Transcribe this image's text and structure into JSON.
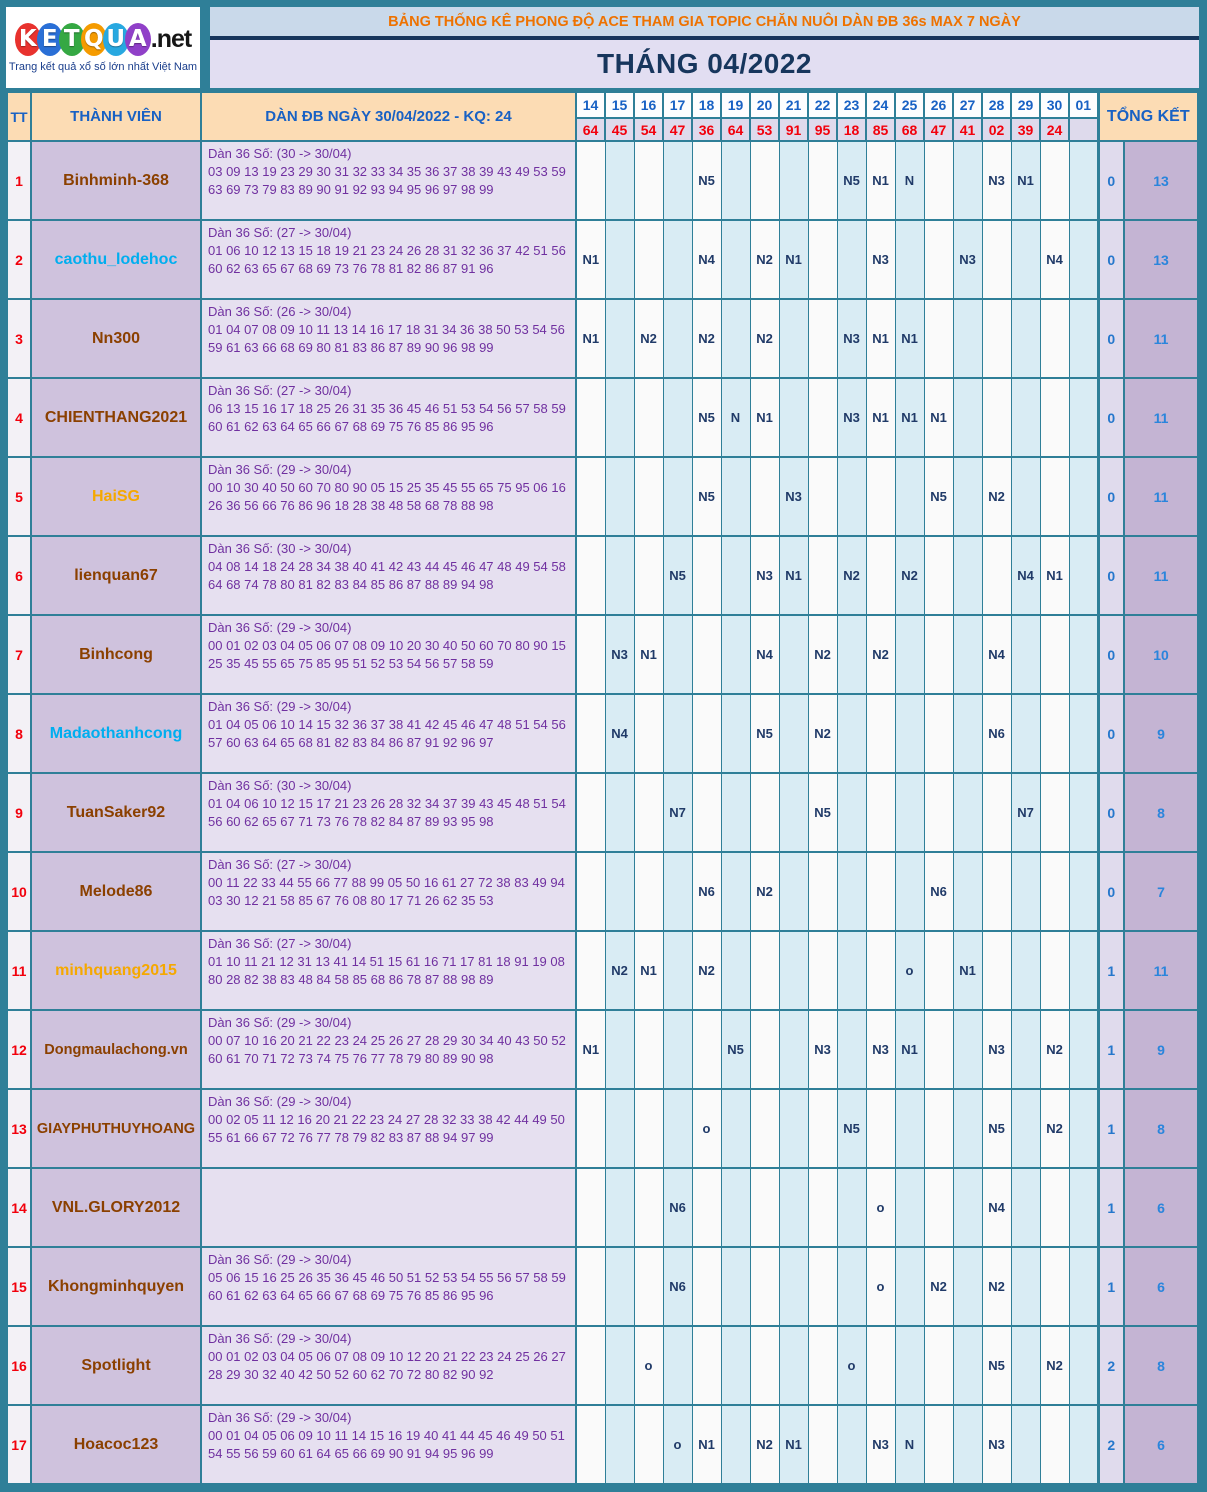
{
  "logo": {
    "letters": [
      {
        "ch": "K",
        "color": "#e8322e"
      },
      {
        "ch": "E",
        "color": "#2a6fd6"
      },
      {
        "ch": "T",
        "color": "#35a843"
      },
      {
        "ch": "Q",
        "color": "#f59b00"
      },
      {
        "ch": "U",
        "color": "#28a8e0"
      },
      {
        "ch": "A",
        "color": "#9040c8"
      }
    ],
    "suffix": ".net",
    "tagline": "Trang kết quả xổ số lớn nhất Việt Nam"
  },
  "header": {
    "banner": "BẢNG THỐNG KÊ PHONG ĐỘ ACE THAM GIA TOPIC CHĂN NUÔI DÀN ĐB 36s MAX 7 NGÀY",
    "month_title": "THÁNG 04/2022"
  },
  "colors": {
    "page_teal": "#2f7f98",
    "header_peach": "#fcdcb4",
    "banner_blue": "#c9d9ea",
    "banner_text_orange": "#ee7200",
    "navy": "#17365d",
    "header_text_blue": "#1861c4",
    "kq_red": "#f2000c",
    "mark_navy": "#203a68",
    "dan_purple": "#7030a0",
    "member_bg": "#cfc2dd",
    "date_alt_blue": "#d9ecf4",
    "total_bg": "#c4b4d3",
    "name_brown": "#8b4000",
    "name_blue": "#00aeef",
    "name_orange": "#f5a800"
  },
  "table": {
    "col_tt": "TT",
    "col_member": "THÀNH VIÊN",
    "col_dan": "DÀN ĐB NGÀY 30/04/2022 - KQ: 24",
    "col_tongket": "TỔNG KẾT",
    "dates": [
      "14",
      "15",
      "16",
      "17",
      "18",
      "19",
      "20",
      "21",
      "22",
      "23",
      "24",
      "25",
      "26",
      "27",
      "28",
      "29",
      "30",
      "01"
    ],
    "kq": [
      "64",
      "45",
      "54",
      "47",
      "36",
      "64",
      "53",
      "91",
      "95",
      "18",
      "85",
      "68",
      "47",
      "41",
      "02",
      "39",
      "24",
      ""
    ],
    "rows": [
      {
        "tt": "1",
        "name": "Binhminh-368",
        "name_color": "#8b4000",
        "dan_title": "Dàn 36 Số: (30 -> 30/04)",
        "dan_numbers": "03 09 13 19 23 29 30 31 32 33 34 35 36 37 38 39 43 49 53 59 63 69 73 79 83 89 90 91 92 93 94 95 96 97 98 99",
        "cells": [
          "",
          "",
          "",
          "",
          "N5",
          "",
          "",
          "",
          "",
          "N5",
          "N1",
          "N",
          "",
          "",
          "N3",
          "N1",
          "",
          ""
        ],
        "tk1": "0",
        "tk2": "13"
      },
      {
        "tt": "2",
        "name": "caothu_lodehoc",
        "name_color": "#00aeef",
        "dan_title": "Dàn 36 Số: (27 -> 30/04)",
        "dan_numbers": "01 06 10 12 13 15 18 19 21 23 24 26 28 31 32 36 37 42 51 56 60 62 63 65 67 68 69 73 76 78 81 82 86 87 91 96",
        "cells": [
          "N1",
          "",
          "",
          "",
          "N4",
          "",
          "N2",
          "N1",
          "",
          "",
          "N3",
          "",
          "",
          "N3",
          "",
          "",
          "N4",
          ""
        ],
        "tk1": "0",
        "tk2": "13"
      },
      {
        "tt": "3",
        "name": "Nn300",
        "name_color": "#8b4000",
        "dan_title": "Dàn 36 Số: (26 -> 30/04)",
        "dan_numbers": "01 04 07 08 09 10 11 13 14 16 17 18 31 34 36 38 50 53 54 56 59 61 63 66 68 69 80 81 83 86 87 89 90 96 98 99",
        "cells": [
          "N1",
          "",
          "N2",
          "",
          "N2",
          "",
          "N2",
          "",
          "",
          "N3",
          "N1",
          "N1",
          "",
          "",
          "",
          "",
          "",
          ""
        ],
        "tk1": "0",
        "tk2": "11"
      },
      {
        "tt": "4",
        "name": "CHIENTHANG2021",
        "name_color": "#8b4000",
        "dan_title": "Dàn 36 Số: (27 -> 30/04)",
        "dan_numbers": "06 13 15 16 17 18 25 26 31 35 36 45 46 51 53 54 56 57 58 59 60 61 62 63 64 65 66 67 68 69 75 76 85 86 95 96",
        "cells": [
          "",
          "",
          "",
          "",
          "N5",
          "N",
          "N1",
          "",
          "",
          "N3",
          "N1",
          "N1",
          "N1",
          "",
          "",
          "",
          "",
          ""
        ],
        "tk1": "0",
        "tk2": "11"
      },
      {
        "tt": "5",
        "name": "HaiSG",
        "name_color": "#f5a800",
        "dan_title": "Dàn 36 Số: (29 -> 30/04)",
        "dan_numbers": "00 10 30 40 50 60 70 80 90 05 15 25 35 45 55 65 75 95 06 16 26 36 56 66 76 86 96 18 28 38 48 58 68 78 88 98",
        "cells": [
          "",
          "",
          "",
          "",
          "N5",
          "",
          "",
          "N3",
          "",
          "",
          "",
          "",
          "N5",
          "",
          "N2",
          "",
          "",
          ""
        ],
        "tk1": "0",
        "tk2": "11"
      },
      {
        "tt": "6",
        "name": "lienquan67",
        "name_color": "#8b4000",
        "dan_title": "Dàn 36 Số: (30 -> 30/04)",
        "dan_numbers": "04 08 14 18 24 28 34 38 40 41 42 43 44 45 46 47 48 49 54 58 64 68 74 78 80 81 82 83 84 85 86 87 88 89 94 98",
        "cells": [
          "",
          "",
          "",
          "N5",
          "",
          "",
          "N3",
          "N1",
          "",
          "N2",
          "",
          "N2",
          "",
          "",
          "",
          "N4",
          "N1",
          ""
        ],
        "tk1": "0",
        "tk2": "11"
      },
      {
        "tt": "7",
        "name": "Binhcong",
        "name_color": "#8b4000",
        "dan_title": "Dàn 36 Số: (29 -> 30/04)",
        "dan_numbers": "00 01 02 03 04 05 06 07 08 09 10 20 30 40 50 60 70 80 90 15 25 35 45 55 65 75 85 95 51 52 53 54 56 57 58 59",
        "cells": [
          "",
          "N3",
          "N1",
          "",
          "",
          "",
          "N4",
          "",
          "N2",
          "",
          "N2",
          "",
          "",
          "",
          "N4",
          "",
          "",
          ""
        ],
        "tk1": "0",
        "tk2": "10"
      },
      {
        "tt": "8",
        "name": "Madaothanhcong",
        "name_color": "#00aeef",
        "dan_title": "Dàn 36 Số: (29 -> 30/04)",
        "dan_numbers": "01 04 05 06 10 14 15 32 36 37 38 41 42 45 46 47 48 51 54 56 57 60 63 64 65 68 81 82 83 84 86 87 91 92 96 97",
        "cells": [
          "",
          "N4",
          "",
          "",
          "",
          "",
          "N5",
          "",
          "N2",
          "",
          "",
          "",
          "",
          "",
          "N6",
          "",
          "",
          ""
        ],
        "tk1": "0",
        "tk2": "9"
      },
      {
        "tt": "9",
        "name": "TuanSaker92",
        "name_color": "#8b4000",
        "dan_title": "Dàn 36 Số: (30 -> 30/04)",
        "dan_numbers": "01 04 06 10 12 15 17 21 23 26 28 32 34 37 39 43 45 48 51 54 56 60 62 65 67 71 73 76 78 82 84 87 89 93 95 98",
        "cells": [
          "",
          "",
          "",
          "N7",
          "",
          "",
          "",
          "",
          "N5",
          "",
          "",
          "",
          "",
          "",
          "",
          "N7",
          "",
          ""
        ],
        "tk1": "0",
        "tk2": "8"
      },
      {
        "tt": "10",
        "name": "Melode86",
        "name_color": "#8b4000",
        "dan_title": "Dàn 36 Số: (27 -> 30/04)",
        "dan_numbers": "00 11 22 33 44 55 66 77 88 99 05 50 16 61 27 72 38 83 49 94 03 30 12 21 58 85 67 76 08 80 17 71 26 62 35 53",
        "cells": [
          "",
          "",
          "",
          "",
          "N6",
          "",
          "N2",
          "",
          "",
          "",
          "",
          "",
          "N6",
          "",
          "",
          "",
          "",
          ""
        ],
        "tk1": "0",
        "tk2": "7"
      },
      {
        "tt": "11",
        "name": "minhquang2015",
        "name_color": "#f5a800",
        "dan_title": "Dàn 36 Số: (27 -> 30/04)",
        "dan_numbers": "01 10 11 21 12 31 13 41 14 51 15 61 16 71 17 81 18 91 19 08 80 28 82 38 83 48 84 58 85 68 86 78 87 88 98 89",
        "cells": [
          "",
          "N2",
          "N1",
          "",
          "N2",
          "",
          "",
          "",
          "",
          "",
          "",
          "o",
          "",
          "N1",
          "",
          "",
          "",
          ""
        ],
        "tk1": "1",
        "tk2": "11"
      },
      {
        "tt": "12",
        "name": "Dongmaulachong.vn",
        "name_color": "#8b4000",
        "dan_title": "Dàn 36 Số: (29 -> 30/04)",
        "dan_numbers": "00 07 10 16 20 21 22 23 24 25 26 27 28 29 30 34 40 43 50 52 60 61 70 71 72 73 74 75 76 77 78 79 80 89 90 98",
        "cells": [
          "N1",
          "",
          "",
          "",
          "",
          "N5",
          "",
          "",
          "N3",
          "",
          "N3",
          "N1",
          "",
          "",
          "N3",
          "",
          "N2",
          ""
        ],
        "tk1": "1",
        "tk2": "9"
      },
      {
        "tt": "13",
        "name": "GIAYPHUTHUYHOANG",
        "name_color": "#8b4000",
        "dan_title": "Dàn 36 Số: (29 -> 30/04)",
        "dan_numbers": "00 02 05 11 12 16 20 21 22 23 24 27 28 32 33 38 42 44 49 50 55 61 66 67 72 76 77 78 79 82 83 87 88 94 97 99",
        "cells": [
          "",
          "",
          "",
          "",
          "o",
          "",
          "",
          "",
          "",
          "N5",
          "",
          "",
          "",
          "",
          "N5",
          "",
          "N2",
          ""
        ],
        "tk1": "1",
        "tk2": "8"
      },
      {
        "tt": "14",
        "name": "VNL.GLORY2012",
        "name_color": "#8b4000",
        "dan_title": "",
        "dan_numbers": "",
        "cells": [
          "",
          "",
          "",
          "N6",
          "",
          "",
          "",
          "",
          "",
          "",
          "o",
          "",
          "",
          "",
          "N4",
          "",
          "",
          ""
        ],
        "tk1": "1",
        "tk2": "6"
      },
      {
        "tt": "15",
        "name": "Khongminhquyen",
        "name_color": "#8b4000",
        "dan_title": "Dàn 36 Số: (29 -> 30/04)",
        "dan_numbers": "05 06 15 16 25 26 35 36 45 46 50 51 52 53 54 55 56 57 58 59 60 61 62 63 64 65 66 67 68 69 75 76 85 86 95 96",
        "cells": [
          "",
          "",
          "",
          "N6",
          "",
          "",
          "",
          "",
          "",
          "",
          "o",
          "",
          "N2",
          "",
          "N2",
          "",
          "",
          ""
        ],
        "tk1": "1",
        "tk2": "6"
      },
      {
        "tt": "16",
        "name": "Spotlight",
        "name_color": "#8b4000",
        "dan_title": "Dàn 36 Số: (29 -> 30/04)",
        "dan_numbers": "00 01 02 03 04 05 06 07 08 09 10 12 20 21 22 23 24 25 26 27 28 29 30 32 40 42 50 52 60 62 70 72 80 82 90 92",
        "cells": [
          "",
          "",
          "o",
          "",
          "",
          "",
          "",
          "",
          "",
          "o",
          "",
          "",
          "",
          "",
          "N5",
          "",
          "N2",
          ""
        ],
        "tk1": "2",
        "tk2": "8"
      },
      {
        "tt": "17",
        "name": "Hoacoc123",
        "name_color": "#8b4000",
        "dan_title": "Dàn 36 Số: (29 -> 30/04)",
        "dan_numbers": "00 01 04 05 06 09 10 11 14 15 16 19 40 41 44 45 46 49 50 51 54 55 56 59 60 61 64 65 66 69 90 91 94 95 96 99",
        "cells": [
          "",
          "",
          "",
          "o",
          "N1",
          "",
          "N2",
          "N1",
          "",
          "",
          "N3",
          "N",
          "",
          "",
          "N3",
          "",
          "",
          ""
        ],
        "tk1": "2",
        "tk2": "6"
      }
    ]
  }
}
